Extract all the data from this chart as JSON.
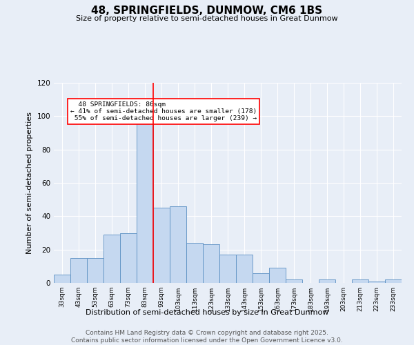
{
  "title": "48, SPRINGFIELDS, DUNMOW, CM6 1BS",
  "subtitle": "Size of property relative to semi-detached houses in Great Dunmow",
  "xlabel": "Distribution of semi-detached houses by size in Great Dunmow",
  "ylabel": "Number of semi-detached properties",
  "categories": [
    "33sqm",
    "43sqm",
    "53sqm",
    "63sqm",
    "73sqm",
    "83sqm",
    "93sqm",
    "103sqm",
    "113sqm",
    "123sqm",
    "133sqm",
    "143sqm",
    "153sqm",
    "163sqm",
    "173sqm",
    "183sqm",
    "193sqm",
    "203sqm",
    "213sqm",
    "223sqm",
    "233sqm"
  ],
  "values": [
    5,
    15,
    15,
    29,
    30,
    97,
    45,
    46,
    24,
    23,
    17,
    17,
    6,
    9,
    2,
    0,
    2,
    0,
    2,
    1,
    2
  ],
  "bar_color": "#c5d8f0",
  "bar_edge_color": "#5a8fc2",
  "background_color": "#e8eef7",
  "grid_color": "#ffffff",
  "property_label": "48 SPRINGFIELDS: 86sqm",
  "pct_smaller": 41,
  "pct_larger": 55,
  "count_smaller": 178,
  "count_larger": 239,
  "vline_bin_idx": 5,
  "ylim": [
    0,
    120
  ],
  "yticks": [
    0,
    20,
    40,
    60,
    80,
    100,
    120
  ],
  "footer_line1": "Contains HM Land Registry data © Crown copyright and database right 2025.",
  "footer_line2": "Contains public sector information licensed under the Open Government Licence v3.0."
}
